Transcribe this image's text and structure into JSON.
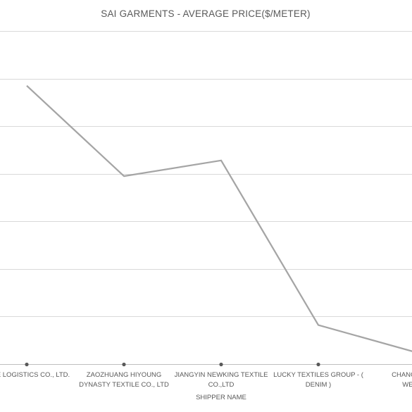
{
  "chart_data": {
    "type": "line",
    "title": "SAI GARMENTS - AVERAGE PRICE($/METER)",
    "xlabel": "SHIPPER NAME",
    "ylabel": "",
    "categories": [
      [
        "...E LOGISTICS CO., LTD."
      ],
      [
        "ZAOZHUANG HIYOUNG",
        "DYNASTY TEXTILE CO., LTD"
      ],
      [
        "JIANGYIN NEWKING TEXTILE",
        "CO.,LTD"
      ],
      [
        "LUCKY TEXTILES GROUP - (",
        "DENIM )"
      ],
      [
        "CHANGZHOU ...",
        "WEAVE..."
      ]
    ],
    "series": [
      {
        "values": [
          5.85,
          3.95,
          4.28,
          0.82,
          0.25
        ]
      }
    ],
    "ylim": [
      0,
      7
    ],
    "grid": true,
    "legend": "none",
    "colors": {
      "series": "#a5a5a5",
      "grid": "#d9d9d9",
      "text": "#595959"
    }
  }
}
